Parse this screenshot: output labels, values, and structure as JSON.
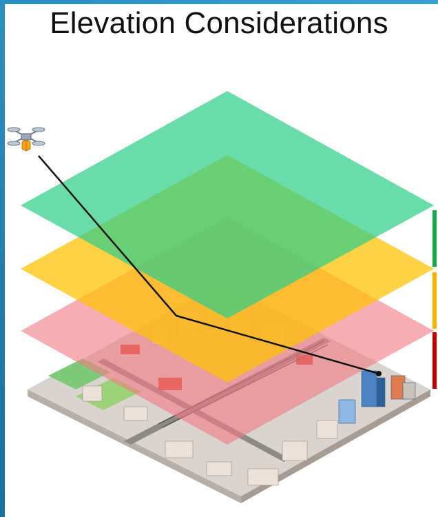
{
  "title": "Elevation Considerations",
  "colors": {
    "frame": "#2a8fc0",
    "layer_top": "#2fcf88",
    "layer_middle": "#ffc107",
    "layer_bottom": "#f07a85",
    "bar_green": "#1aa84f",
    "bar_yellow": "#f4b400",
    "bar_red": "#c00000",
    "flight_path": "#111111"
  },
  "layers": [
    {
      "name": "top-elevation-layer",
      "color": "#2fcf88"
    },
    {
      "name": "middle-elevation-layer",
      "color": "#ffc107"
    },
    {
      "name": "bottom-elevation-layer",
      "color": "#f07a85"
    }
  ],
  "icons": {
    "drone": "drone-icon",
    "city": "isometric-city-illustration"
  }
}
